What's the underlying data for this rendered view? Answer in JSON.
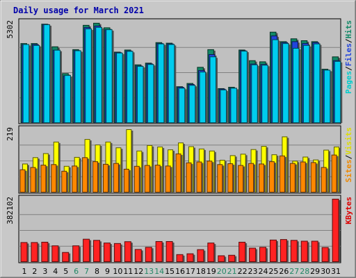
{
  "chart_data": {
    "type": "bar",
    "title": "Daily usage for March 2021",
    "categories": [
      "1",
      "2",
      "3",
      "4",
      "5",
      "6",
      "7",
      "8",
      "9",
      "10",
      "11",
      "12",
      "13",
      "14",
      "15",
      "16",
      "17",
      "18",
      "19",
      "20",
      "21",
      "22",
      "23",
      "24",
      "25",
      "26",
      "27",
      "28",
      "29",
      "30",
      "31"
    ],
    "weekend_days": [
      "6",
      "7",
      "13",
      "14",
      "20",
      "21",
      "27",
      "28"
    ],
    "panels": [
      {
        "name": "hits-files-pages",
        "axis_max_label": "5302",
        "ymax": 5302,
        "legend": [
          {
            "text": "Pages",
            "color": "#00cccc"
          },
          {
            "text": "/",
            "color": "#000000"
          },
          {
            "text": "Files",
            "color": "#2244dd"
          },
          {
            "text": "/",
            "color": "#000000"
          },
          {
            "text": "Hits",
            "color": "#118866"
          }
        ],
        "series": [
          {
            "name": "Hits",
            "color": "#118866",
            "values": [
              4200,
              4200,
              5220,
              4030,
              2620,
              3880,
              5160,
              5270,
              5030,
              3750,
              3860,
              3080,
              3170,
              4250,
              4220,
              1930,
              2100,
              2950,
              3880,
              1830,
              1900,
              3860,
              3300,
              3240,
              4800,
              4300,
              4450,
              4350,
              4300,
              2850,
              3500
            ]
          },
          {
            "name": "Files",
            "color": "#2244dd",
            "values": [
              4150,
              4150,
              5200,
              3850,
              2500,
              3830,
              5040,
              5120,
              4930,
              3720,
              3810,
              3020,
              3130,
              4200,
              4180,
              1900,
              2050,
              2780,
              3620,
              1800,
              1850,
              3820,
              3120,
              3100,
              4600,
              4250,
              4300,
              4200,
              4250,
              2800,
              3300
            ]
          },
          {
            "name": "Pages",
            "color": "#00ccee",
            "values": [
              4150,
              4100,
              5190,
              3850,
              2520,
              3820,
              4970,
              5050,
              4930,
              3700,
              3790,
              3000,
              3100,
              4180,
              4150,
              1850,
              2000,
              2700,
              3500,
              1760,
              1850,
              3800,
              3080,
              3060,
              4400,
              4200,
              3950,
              4100,
              4180,
              2800,
              3260
            ]
          }
        ]
      },
      {
        "name": "visits-sites",
        "axis_max_label": "219",
        "ymax": 219,
        "legend": [
          {
            "text": "Sites",
            "color": "#ee8800"
          },
          {
            "text": "/",
            "color": "#000000"
          },
          {
            "text": "Visits",
            "color": "#dddd00"
          }
        ],
        "series": [
          {
            "name": "Visits",
            "color": "#ffff00",
            "values": [
              100,
              122,
              136,
              176,
              92,
              123,
              185,
              166,
              176,
              156,
              219,
              145,
              164,
              159,
              149,
              173,
              160,
              152,
              145,
              113,
              129,
              134,
              150,
              161,
              132,
              194,
              110,
              124,
              114,
              148,
              159
            ]
          },
          {
            "name": "Sites",
            "color": "#ff8800",
            "values": [
              80,
              88,
              96,
              98,
              75,
              93,
              122,
              108,
              99,
              102,
              82,
              92,
              95,
              96,
              93,
              135,
              104,
              107,
              110,
              98,
              101,
              95,
              102,
              100,
              108,
              128,
              102,
              107,
              105,
              88,
              131
            ]
          }
        ]
      },
      {
        "name": "kbytes",
        "axis_max_label": "382102",
        "ymax": 382102,
        "legend": [
          {
            "text": "KBytes",
            "color": "#dd0000"
          }
        ],
        "series": [
          {
            "name": "KBytes",
            "color": "#ff2222",
            "values": [
              120000,
              120000,
              122000,
              100000,
              60000,
              100000,
              140000,
              133000,
              117000,
              114000,
              125000,
              78000,
              91000,
              126000,
              126000,
              47000,
              52000,
              77000,
              117000,
              40000,
              43000,
              122000,
              86000,
              91000,
              135000,
              138000,
              133000,
              128000,
              128000,
              90000,
              382102
            ]
          }
        ]
      }
    ]
  }
}
